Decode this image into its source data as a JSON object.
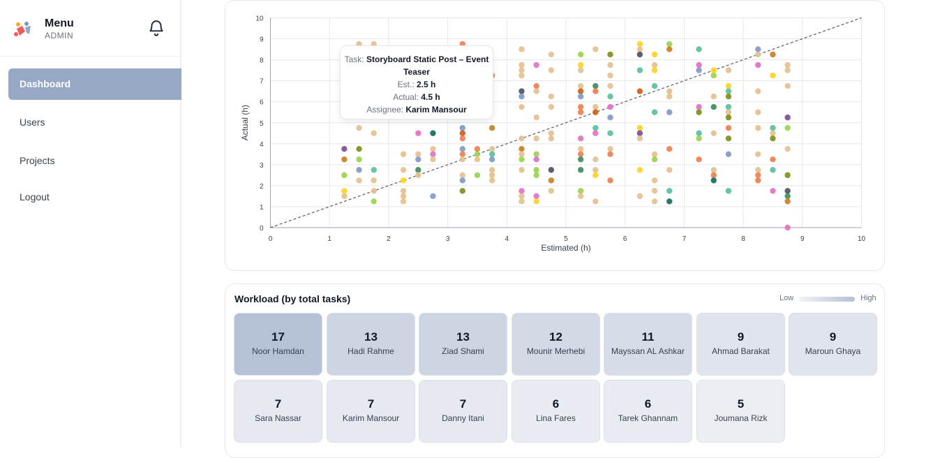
{
  "sidebar": {
    "title": "Menu",
    "subtitle": "ADMIN",
    "nav": [
      "Dashboard",
      "Users",
      "Projects",
      "Logout"
    ],
    "active": "Dashboard"
  },
  "tooltip": {
    "task_label": "Task:",
    "task": "Storyboard Static Post – Event Teaser",
    "est_label": "Est.:",
    "est": "2.5 h",
    "actual_label": "Actual:",
    "actual": "4.5 h",
    "assignee_label": "Assignee:",
    "assignee": "Karim Mansour"
  },
  "chart_data": {
    "type": "scatter",
    "xlabel": "Estimated (h)",
    "ylabel": "Actual (h)",
    "xlim": [
      0,
      10
    ],
    "ylim": [
      0,
      10
    ],
    "xticks": [
      0,
      1,
      2,
      3,
      4,
      5,
      6,
      7,
      8,
      9,
      10
    ],
    "yticks": [
      0,
      1,
      2,
      3,
      4,
      5,
      6,
      7,
      8,
      9,
      10
    ],
    "grid": true,
    "reference_line": "y = x (dashed)",
    "palette": [
      "#e3c08e",
      "#f07c4e",
      "#7f98c9",
      "#9bd24a",
      "#ffd21f",
      "#54bf9a",
      "#e26fc0",
      "#d15a16",
      "#0f6b5b",
      "#7d8c14",
      "#7a4a90",
      "#c67d1d",
      "#3b8a5a",
      "#4a4f5c"
    ],
    "points": [
      {
        "x": 1.25,
        "y": 1.5,
        "c": 0
      },
      {
        "x": 1.25,
        "y": 1.75,
        "c": 4
      },
      {
        "x": 1.25,
        "y": 2.5,
        "c": 3
      },
      {
        "x": 1.25,
        "y": 3.25,
        "c": 11
      },
      {
        "x": 1.25,
        "y": 3.75,
        "c": 10
      },
      {
        "x": 1.5,
        "y": 8.75,
        "c": 0
      },
      {
        "x": 1.5,
        "y": 4.75,
        "c": 0
      },
      {
        "x": 1.5,
        "y": 3.75,
        "c": 9
      },
      {
        "x": 1.5,
        "y": 3.25,
        "c": 3
      },
      {
        "x": 1.5,
        "y": 2.75,
        "c": 2
      },
      {
        "x": 1.5,
        "y": 2.25,
        "c": 0
      },
      {
        "x": 1.75,
        "y": 8.75,
        "c": 0
      },
      {
        "x": 1.75,
        "y": 4.5,
        "c": 0
      },
      {
        "x": 1.75,
        "y": 2.75,
        "c": 5
      },
      {
        "x": 1.75,
        "y": 2.25,
        "c": 0
      },
      {
        "x": 1.75,
        "y": 1.75,
        "c": 0
      },
      {
        "x": 1.75,
        "y": 1.25,
        "c": 3
      },
      {
        "x": 2.25,
        "y": 3.5,
        "c": 0
      },
      {
        "x": 2.25,
        "y": 2.75,
        "c": 0
      },
      {
        "x": 2.25,
        "y": 2.25,
        "c": 4
      },
      {
        "x": 2.25,
        "y": 1.75,
        "c": 0
      },
      {
        "x": 2.25,
        "y": 1.5,
        "c": 0
      },
      {
        "x": 2.25,
        "y": 1.25,
        "c": 0
      },
      {
        "x": 2.5,
        "y": 4.5,
        "c": 6
      },
      {
        "x": 2.5,
        "y": 3.5,
        "c": 0
      },
      {
        "x": 2.5,
        "y": 3.25,
        "c": 2
      },
      {
        "x": 2.5,
        "y": 2.75,
        "c": 12
      },
      {
        "x": 2.5,
        "y": 2.5,
        "c": 0
      },
      {
        "x": 2.75,
        "y": 4.5,
        "c": 8
      },
      {
        "x": 2.75,
        "y": 3.75,
        "c": 0
      },
      {
        "x": 2.75,
        "y": 3.5,
        "c": 6
      },
      {
        "x": 2.75,
        "y": 3.25,
        "c": 0
      },
      {
        "x": 2.75,
        "y": 1.5,
        "c": 2
      },
      {
        "x": 3.25,
        "y": 8.75,
        "c": 1
      },
      {
        "x": 3.25,
        "y": 4.75,
        "c": 2
      },
      {
        "x": 3.25,
        "y": 4.5,
        "c": 7
      },
      {
        "x": 3.25,
        "y": 4.25,
        "c": 1
      },
      {
        "x": 3.25,
        "y": 3.75,
        "c": 2
      },
      {
        "x": 3.25,
        "y": 3.5,
        "c": 1
      },
      {
        "x": 3.25,
        "y": 3.25,
        "c": 0
      },
      {
        "x": 3.25,
        "y": 2.5,
        "c": 0
      },
      {
        "x": 3.25,
        "y": 2.25,
        "c": 2
      },
      {
        "x": 3.25,
        "y": 1.75,
        "c": 9
      },
      {
        "x": 3.5,
        "y": 3.75,
        "c": 1
      },
      {
        "x": 3.5,
        "y": 3.5,
        "c": 3
      },
      {
        "x": 3.5,
        "y": 3.25,
        "c": 0
      },
      {
        "x": 3.5,
        "y": 2.5,
        "c": 3
      },
      {
        "x": 3.75,
        "y": 7.25,
        "c": 1
      },
      {
        "x": 3.75,
        "y": 4.75,
        "c": 11
      },
      {
        "x": 3.75,
        "y": 3.75,
        "c": 0
      },
      {
        "x": 3.75,
        "y": 3.5,
        "c": 5
      },
      {
        "x": 3.75,
        "y": 3.25,
        "c": 2
      },
      {
        "x": 3.75,
        "y": 2.75,
        "c": 0
      },
      {
        "x": 3.75,
        "y": 2.5,
        "c": 0
      },
      {
        "x": 3.75,
        "y": 2.25,
        "c": 0
      },
      {
        "x": 4.25,
        "y": 8.5,
        "c": 0
      },
      {
        "x": 4.25,
        "y": 7.75,
        "c": 0
      },
      {
        "x": 4.25,
        "y": 7.5,
        "c": 0
      },
      {
        "x": 4.25,
        "y": 7.25,
        "c": 0
      },
      {
        "x": 4.25,
        "y": 6.5,
        "c": 13
      },
      {
        "x": 4.25,
        "y": 6.25,
        "c": 2
      },
      {
        "x": 4.25,
        "y": 5.75,
        "c": 0
      },
      {
        "x": 4.25,
        "y": 4.25,
        "c": 0
      },
      {
        "x": 4.25,
        "y": 3.75,
        "c": 11
      },
      {
        "x": 4.25,
        "y": 3.5,
        "c": 0
      },
      {
        "x": 4.25,
        "y": 3.25,
        "c": 3
      },
      {
        "x": 4.25,
        "y": 2.75,
        "c": 0
      },
      {
        "x": 4.25,
        "y": 1.75,
        "c": 6
      },
      {
        "x": 4.25,
        "y": 1.5,
        "c": 0
      },
      {
        "x": 4.25,
        "y": 1.25,
        "c": 0
      },
      {
        "x": 4.5,
        "y": 7.75,
        "c": 6
      },
      {
        "x": 4.5,
        "y": 6.75,
        "c": 1
      },
      {
        "x": 4.5,
        "y": 6.5,
        "c": 0
      },
      {
        "x": 4.5,
        "y": 5.25,
        "c": 0
      },
      {
        "x": 4.5,
        "y": 4.25,
        "c": 0
      },
      {
        "x": 4.5,
        "y": 3.5,
        "c": 3
      },
      {
        "x": 4.5,
        "y": 3.25,
        "c": 6
      },
      {
        "x": 4.5,
        "y": 2.75,
        "c": 3
      },
      {
        "x": 4.5,
        "y": 2.5,
        "c": 3
      },
      {
        "x": 4.5,
        "y": 1.5,
        "c": 6
      },
      {
        "x": 4.5,
        "y": 1.25,
        "c": 4
      },
      {
        "x": 4.75,
        "y": 8.25,
        "c": 0
      },
      {
        "x": 4.75,
        "y": 7.5,
        "c": 0
      },
      {
        "x": 4.75,
        "y": 6.25,
        "c": 0
      },
      {
        "x": 4.75,
        "y": 5.75,
        "c": 0
      },
      {
        "x": 4.75,
        "y": 4.5,
        "c": 0
      },
      {
        "x": 4.75,
        "y": 4.25,
        "c": 0
      },
      {
        "x": 4.75,
        "y": 2.75,
        "c": 13
      },
      {
        "x": 4.75,
        "y": 2.25,
        "c": 11
      },
      {
        "x": 4.75,
        "y": 1.75,
        "c": 0
      },
      {
        "x": 5.25,
        "y": 8.25,
        "c": 3
      },
      {
        "x": 5.25,
        "y": 7.75,
        "c": 4
      },
      {
        "x": 5.25,
        "y": 7.5,
        "c": 0
      },
      {
        "x": 5.25,
        "y": 6.75,
        "c": 0
      },
      {
        "x": 5.25,
        "y": 6.5,
        "c": 7
      },
      {
        "x": 5.25,
        "y": 6.25,
        "c": 2
      },
      {
        "x": 5.25,
        "y": 5.75,
        "c": 1
      },
      {
        "x": 5.25,
        "y": 5.5,
        "c": 1
      },
      {
        "x": 5.25,
        "y": 4.25,
        "c": 6
      },
      {
        "x": 5.25,
        "y": 3.75,
        "c": 0
      },
      {
        "x": 5.25,
        "y": 3.5,
        "c": 1
      },
      {
        "x": 5.25,
        "y": 3.25,
        "c": 12
      },
      {
        "x": 5.25,
        "y": 2.75,
        "c": 12
      },
      {
        "x": 5.25,
        "y": 1.75,
        "c": 3
      },
      {
        "x": 5.25,
        "y": 1.5,
        "c": 0
      },
      {
        "x": 5.5,
        "y": 8.5,
        "c": 0
      },
      {
        "x": 5.5,
        "y": 6.75,
        "c": 12
      },
      {
        "x": 5.5,
        "y": 6.5,
        "c": 1
      },
      {
        "x": 5.5,
        "y": 5.75,
        "c": 0
      },
      {
        "x": 5.5,
        "y": 5.5,
        "c": 7
      },
      {
        "x": 5.5,
        "y": 4.75,
        "c": 5
      },
      {
        "x": 5.5,
        "y": 4.5,
        "c": 6
      },
      {
        "x": 5.5,
        "y": 3.25,
        "c": 0
      },
      {
        "x": 5.5,
        "y": 2.75,
        "c": 0
      },
      {
        "x": 5.5,
        "y": 2.5,
        "c": 4
      },
      {
        "x": 5.5,
        "y": 1.25,
        "c": 0
      },
      {
        "x": 5.75,
        "y": 8.25,
        "c": 9
      },
      {
        "x": 5.75,
        "y": 7.75,
        "c": 0
      },
      {
        "x": 5.75,
        "y": 7.25,
        "c": 0
      },
      {
        "x": 5.75,
        "y": 6.75,
        "c": 0
      },
      {
        "x": 5.75,
        "y": 6.25,
        "c": 5
      },
      {
        "x": 5.75,
        "y": 5.75,
        "c": 6
      },
      {
        "x": 5.75,
        "y": 5.25,
        "c": 2
      },
      {
        "x": 5.75,
        "y": 4.5,
        "c": 5
      },
      {
        "x": 5.75,
        "y": 3.75,
        "c": 0
      },
      {
        "x": 5.75,
        "y": 3.5,
        "c": 1
      },
      {
        "x": 5.75,
        "y": 2.25,
        "c": 1
      },
      {
        "x": 6.25,
        "y": 8.75,
        "c": 4
      },
      {
        "x": 6.25,
        "y": 8.5,
        "c": 0
      },
      {
        "x": 6.25,
        "y": 8.25,
        "c": 13
      },
      {
        "x": 6.25,
        "y": 7.5,
        "c": 5
      },
      {
        "x": 6.25,
        "y": 6.5,
        "c": 7
      },
      {
        "x": 6.25,
        "y": 4.75,
        "c": 4
      },
      {
        "x": 6.25,
        "y": 4.5,
        "c": 10
      },
      {
        "x": 6.25,
        "y": 4.25,
        "c": 0
      },
      {
        "x": 6.25,
        "y": 2.75,
        "c": 4
      },
      {
        "x": 6.25,
        "y": 1.5,
        "c": 0
      },
      {
        "x": 6.5,
        "y": 8.25,
        "c": 4
      },
      {
        "x": 6.5,
        "y": 7.75,
        "c": 0
      },
      {
        "x": 6.5,
        "y": 7.5,
        "c": 4
      },
      {
        "x": 6.5,
        "y": 6.75,
        "c": 5
      },
      {
        "x": 6.5,
        "y": 5.5,
        "c": 5
      },
      {
        "x": 6.5,
        "y": 3.5,
        "c": 0
      },
      {
        "x": 6.5,
        "y": 3.25,
        "c": 3
      },
      {
        "x": 6.5,
        "y": 2.25,
        "c": 0
      },
      {
        "x": 6.5,
        "y": 1.75,
        "c": 0
      },
      {
        "x": 6.5,
        "y": 1.25,
        "c": 0
      },
      {
        "x": 6.75,
        "y": 8.75,
        "c": 3
      },
      {
        "x": 6.75,
        "y": 8.5,
        "c": 11
      },
      {
        "x": 6.75,
        "y": 6.5,
        "c": 0
      },
      {
        "x": 6.75,
        "y": 6.25,
        "c": 0
      },
      {
        "x": 6.75,
        "y": 5.5,
        "c": 2
      },
      {
        "x": 6.75,
        "y": 3.75,
        "c": 1
      },
      {
        "x": 6.75,
        "y": 2.75,
        "c": 0
      },
      {
        "x": 6.75,
        "y": 1.75,
        "c": 5
      },
      {
        "x": 6.75,
        "y": 1.25,
        "c": 8
      },
      {
        "x": 7.25,
        "y": 8.5,
        "c": 5
      },
      {
        "x": 7.25,
        "y": 7.75,
        "c": 6
      },
      {
        "x": 7.25,
        "y": 7.5,
        "c": 2
      },
      {
        "x": 7.25,
        "y": 5.75,
        "c": 6
      },
      {
        "x": 7.25,
        "y": 5.5,
        "c": 9
      },
      {
        "x": 7.25,
        "y": 4.5,
        "c": 5
      },
      {
        "x": 7.25,
        "y": 4.25,
        "c": 3
      },
      {
        "x": 7.25,
        "y": 3.25,
        "c": 1
      },
      {
        "x": 7.5,
        "y": 7.5,
        "c": 4
      },
      {
        "x": 7.5,
        "y": 7.25,
        "c": 3
      },
      {
        "x": 7.5,
        "y": 6.25,
        "c": 0
      },
      {
        "x": 7.5,
        "y": 5.75,
        "c": 12
      },
      {
        "x": 7.5,
        "y": 4.5,
        "c": 0
      },
      {
        "x": 7.5,
        "y": 2.75,
        "c": 0
      },
      {
        "x": 7.5,
        "y": 2.5,
        "c": 1
      },
      {
        "x": 7.5,
        "y": 2.25,
        "c": 8
      },
      {
        "x": 7.75,
        "y": 7.5,
        "c": 0
      },
      {
        "x": 7.75,
        "y": 6.75,
        "c": 4
      },
      {
        "x": 7.75,
        "y": 6.5,
        "c": 5
      },
      {
        "x": 7.75,
        "y": 6.25,
        "c": 9
      },
      {
        "x": 7.75,
        "y": 5.75,
        "c": 5
      },
      {
        "x": 7.75,
        "y": 5.5,
        "c": 0
      },
      {
        "x": 7.75,
        "y": 5.25,
        "c": 9
      },
      {
        "x": 7.75,
        "y": 4.75,
        "c": 1
      },
      {
        "x": 7.75,
        "y": 4.25,
        "c": 9
      },
      {
        "x": 7.75,
        "y": 3.5,
        "c": 2
      },
      {
        "x": 7.75,
        "y": 1.75,
        "c": 5
      },
      {
        "x": 8.25,
        "y": 8.5,
        "c": 2
      },
      {
        "x": 8.25,
        "y": 8.25,
        "c": 0
      },
      {
        "x": 8.25,
        "y": 7.75,
        "c": 6
      },
      {
        "x": 8.25,
        "y": 6.5,
        "c": 0
      },
      {
        "x": 8.25,
        "y": 5.5,
        "c": 0
      },
      {
        "x": 8.25,
        "y": 4.75,
        "c": 0
      },
      {
        "x": 8.25,
        "y": 3.5,
        "c": 0
      },
      {
        "x": 8.25,
        "y": 2.75,
        "c": 0
      },
      {
        "x": 8.25,
        "y": 2.5,
        "c": 1
      },
      {
        "x": 8.25,
        "y": 2.25,
        "c": 1
      },
      {
        "x": 8.5,
        "y": 8.25,
        "c": 11
      },
      {
        "x": 8.5,
        "y": 7.25,
        "c": 4
      },
      {
        "x": 8.5,
        "y": 4.75,
        "c": 5
      },
      {
        "x": 8.5,
        "y": 4.5,
        "c": 0
      },
      {
        "x": 8.5,
        "y": 4.25,
        "c": 9
      },
      {
        "x": 8.5,
        "y": 3.25,
        "c": 1
      },
      {
        "x": 8.5,
        "y": 2.75,
        "c": 5
      },
      {
        "x": 8.5,
        "y": 1.75,
        "c": 6
      },
      {
        "x": 8.75,
        "y": 7.75,
        "c": 0
      },
      {
        "x": 8.75,
        "y": 7.5,
        "c": 0
      },
      {
        "x": 8.75,
        "y": 6.75,
        "c": 0
      },
      {
        "x": 8.75,
        "y": 5.25,
        "c": 10
      },
      {
        "x": 8.75,
        "y": 4.75,
        "c": 3
      },
      {
        "x": 8.75,
        "y": 3.75,
        "c": 0
      },
      {
        "x": 8.75,
        "y": 2.5,
        "c": 9
      },
      {
        "x": 8.75,
        "y": 1.75,
        "c": 13
      },
      {
        "x": 8.75,
        "y": 1.5,
        "c": 12
      },
      {
        "x": 8.75,
        "y": 1.25,
        "c": 11
      },
      {
        "x": 8.75,
        "y": 0,
        "c": 6
      }
    ]
  },
  "workload": {
    "title": "Workload (by total tasks)",
    "legend_low": "Low",
    "legend_high": "High",
    "items": [
      {
        "count": "17",
        "name": "Noor Hamdan",
        "bg": "#b4c1d6"
      },
      {
        "count": "13",
        "name": "Hadi Rahme",
        "bg": "#cdd5e2"
      },
      {
        "count": "13",
        "name": "Ziad Shami",
        "bg": "#cdd5e2"
      },
      {
        "count": "12",
        "name": "Mounir Merhebi",
        "bg": "#d3dae5"
      },
      {
        "count": "11",
        "name": "Mayssan AL Ashkar",
        "bg": "#d7dde8"
      },
      {
        "count": "9",
        "name": "Ahmad Barakat",
        "bg": "#e0e5ed"
      },
      {
        "count": "9",
        "name": "Maroun Ghaya",
        "bg": "#e0e5ed"
      },
      {
        "count": "7",
        "name": "Sara Nassar",
        "bg": "#e6e9f0"
      },
      {
        "count": "7",
        "name": "Karim Mansour",
        "bg": "#e6e9f0"
      },
      {
        "count": "7",
        "name": "Danny Itani",
        "bg": "#e6e9f0"
      },
      {
        "count": "6",
        "name": "Lina Fares",
        "bg": "#e9ecf2"
      },
      {
        "count": "6",
        "name": "Tarek Ghannam",
        "bg": "#e9ecf2"
      },
      {
        "count": "5",
        "name": "Joumana Rizk",
        "bg": "#eceef3"
      }
    ]
  }
}
